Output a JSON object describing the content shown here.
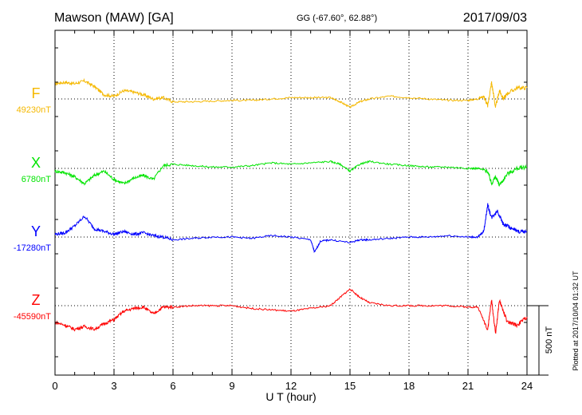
{
  "header": {
    "station": "Mawson (MAW)  [GA]",
    "coords": "GG (-67.60°,  62.88°)",
    "date": "2017/09/03"
  },
  "footer": {
    "plotted": "Plotted at 2017/10/04 01:32 UT"
  },
  "chart_data": {
    "type": "line",
    "xlabel": "U T (hour)",
    "xlim": [
      0,
      24
    ],
    "xticks": [
      0,
      3,
      6,
      9,
      12,
      15,
      18,
      21,
      24
    ],
    "xtick_labels": [
      "0",
      "3",
      "6",
      "9",
      "12",
      "15",
      "18",
      "21",
      "24"
    ],
    "grid": "dotted vertical lines every 3 hours and dotted baseline per component",
    "scale_bar": {
      "label": "500 nT",
      "value_nT": 500
    },
    "series": [
      {
        "name": "F",
        "baseline_label": "49230nT",
        "baseline_nT": 49230,
        "color": "#f5b800",
        "points": [
          [
            0,
            110
          ],
          [
            0.5,
            120
          ],
          [
            1,
            110
          ],
          [
            1.5,
            130
          ],
          [
            2,
            90
          ],
          [
            2.5,
            30
          ],
          [
            3,
            20
          ],
          [
            3.5,
            60
          ],
          [
            4,
            50
          ],
          [
            4.5,
            30
          ],
          [
            5,
            0
          ],
          [
            5.5,
            10
          ],
          [
            6,
            -20
          ],
          [
            7,
            -20
          ],
          [
            8,
            -15
          ],
          [
            9,
            -10
          ],
          [
            10,
            -10
          ],
          [
            11,
            0
          ],
          [
            12,
            10
          ],
          [
            13,
            10
          ],
          [
            14,
            10
          ],
          [
            14.5,
            -20
          ],
          [
            15,
            -60
          ],
          [
            15.5,
            -20
          ],
          [
            16,
            0
          ],
          [
            17,
            20
          ],
          [
            18,
            10
          ],
          [
            19,
            0
          ],
          [
            20,
            -10
          ],
          [
            21,
            -10
          ],
          [
            21.5,
            0
          ],
          [
            21.8,
            20
          ],
          [
            22,
            -50
          ],
          [
            22.2,
            120
          ],
          [
            22.4,
            -60
          ],
          [
            22.6,
            60
          ],
          [
            22.8,
            0
          ],
          [
            23,
            40
          ],
          [
            23.5,
            80
          ],
          [
            24,
            80
          ]
        ]
      },
      {
        "name": "X",
        "baseline_label": "6780nT",
        "baseline_nT": 6780,
        "color": "#00e400",
        "points": [
          [
            0,
            -20
          ],
          [
            0.5,
            -30
          ],
          [
            1,
            -60
          ],
          [
            1.5,
            -110
          ],
          [
            2,
            -50
          ],
          [
            2.5,
            -20
          ],
          [
            3,
            -80
          ],
          [
            3.5,
            -110
          ],
          [
            4,
            -70
          ],
          [
            4.5,
            -50
          ],
          [
            5,
            -80
          ],
          [
            5.5,
            20
          ],
          [
            6,
            30
          ],
          [
            7,
            20
          ],
          [
            8,
            10
          ],
          [
            9,
            10
          ],
          [
            10,
            20
          ],
          [
            11,
            40
          ],
          [
            12,
            30
          ],
          [
            13,
            40
          ],
          [
            14,
            50
          ],
          [
            14.5,
            30
          ],
          [
            15,
            -20
          ],
          [
            15.5,
            30
          ],
          [
            16,
            50
          ],
          [
            17,
            30
          ],
          [
            18,
            20
          ],
          [
            19,
            10
          ],
          [
            20,
            10
          ],
          [
            21,
            0
          ],
          [
            21.5,
            0
          ],
          [
            22,
            -20
          ],
          [
            22.2,
            -110
          ],
          [
            22.4,
            -60
          ],
          [
            22.6,
            -120
          ],
          [
            23,
            -40
          ],
          [
            23.5,
            0
          ],
          [
            24,
            10
          ]
        ]
      },
      {
        "name": "Y",
        "baseline_label": "-17280nT",
        "baseline_nT": -17280,
        "color": "#0000ff",
        "points": [
          [
            0,
            20
          ],
          [
            0.5,
            30
          ],
          [
            1,
            80
          ],
          [
            1.5,
            150
          ],
          [
            2,
            60
          ],
          [
            2.5,
            40
          ],
          [
            3,
            20
          ],
          [
            3.5,
            40
          ],
          [
            4,
            20
          ],
          [
            4.5,
            30
          ],
          [
            5,
            10
          ],
          [
            5.5,
            0
          ],
          [
            6,
            -20
          ],
          [
            7,
            -10
          ],
          [
            8,
            0
          ],
          [
            9,
            0
          ],
          [
            10,
            -10
          ],
          [
            11,
            10
          ],
          [
            12,
            0
          ],
          [
            13,
            -20
          ],
          [
            13.2,
            -110
          ],
          [
            13.5,
            -30
          ],
          [
            14,
            -20
          ],
          [
            15,
            -40
          ],
          [
            15.5,
            -20
          ],
          [
            16,
            -20
          ],
          [
            17,
            -10
          ],
          [
            18,
            0
          ],
          [
            19,
            0
          ],
          [
            20,
            10
          ],
          [
            21,
            0
          ],
          [
            21.5,
            0
          ],
          [
            21.8,
            40
          ],
          [
            22,
            230
          ],
          [
            22.2,
            140
          ],
          [
            22.5,
            190
          ],
          [
            22.8,
            90
          ],
          [
            23,
            80
          ],
          [
            23.5,
            40
          ],
          [
            24,
            40
          ]
        ]
      },
      {
        "name": "Z",
        "baseline_label": "-45590nT",
        "baseline_nT": -45590,
        "color": "#ff0000",
        "points": [
          [
            0,
            -120
          ],
          [
            0.5,
            -140
          ],
          [
            1,
            -170
          ],
          [
            1.5,
            -150
          ],
          [
            2,
            -170
          ],
          [
            2.5,
            -130
          ],
          [
            3,
            -100
          ],
          [
            3.5,
            -40
          ],
          [
            4,
            -20
          ],
          [
            4.5,
            -10
          ],
          [
            5,
            -60
          ],
          [
            5.5,
            -10
          ],
          [
            6,
            -10
          ],
          [
            7,
            0
          ],
          [
            8,
            0
          ],
          [
            9,
            0
          ],
          [
            10,
            -20
          ],
          [
            11,
            -30
          ],
          [
            12,
            -40
          ],
          [
            13,
            -20
          ],
          [
            14,
            0
          ],
          [
            14.5,
            60
          ],
          [
            15,
            120
          ],
          [
            15.5,
            60
          ],
          [
            16,
            20
          ],
          [
            17,
            0
          ],
          [
            18,
            0
          ],
          [
            19,
            0
          ],
          [
            20,
            0
          ],
          [
            21,
            -10
          ],
          [
            21.5,
            -10
          ],
          [
            22,
            -170
          ],
          [
            22.2,
            40
          ],
          [
            22.4,
            -200
          ],
          [
            22.6,
            40
          ],
          [
            23,
            -120
          ],
          [
            23.5,
            -140
          ],
          [
            24,
            -80
          ]
        ]
      }
    ]
  }
}
